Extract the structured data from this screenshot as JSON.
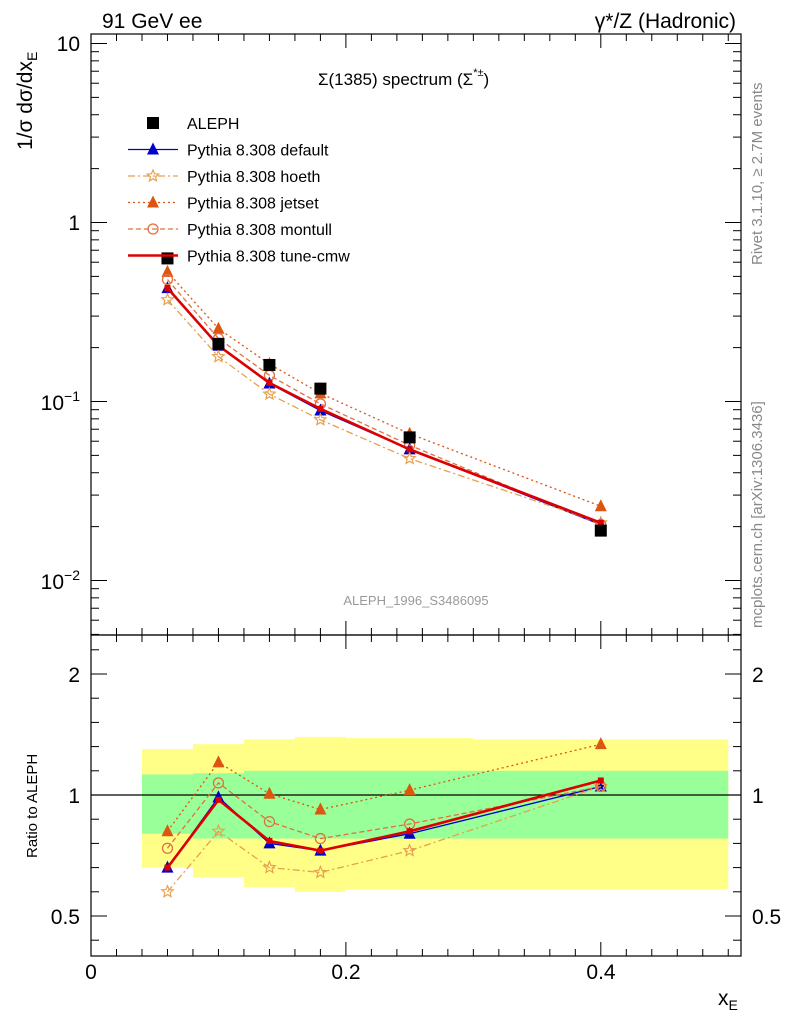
{
  "header": {
    "left": "91 GeV ee",
    "right": "γ*/Z (Hadronic)"
  },
  "side_text": {
    "rivet": "Rivet 3.1.10, ≥ 2.7M events",
    "mcplots": "mcplots.cern.ch [arXiv:1306.3436]"
  },
  "watermark": "ALEPH_1996_S3486095",
  "chart_data": {
    "type": "line",
    "title": "Σ(1385) spectrum (Σ*±)",
    "xlabel": "x_E",
    "ylabel": "1/σ dσ/dx_E",
    "ratio_ylabel": "Ratio to ALEPH",
    "xlim": [
      0,
      0.51
    ],
    "ylim": [
      0.005,
      11
    ],
    "yscale": "log",
    "ratio_ylim": [
      0.35,
      2.4
    ],
    "x": [
      0.06,
      0.1,
      0.14,
      0.18,
      0.25,
      0.4
    ],
    "x_ticks": [
      "0",
      "0.2",
      "0.4"
    ],
    "y_ticks": [
      "10",
      "1",
      "10−1",
      "10−2"
    ],
    "ratio_ticks": [
      "2",
      "1",
      "0.5"
    ],
    "legend_position": "top-left",
    "data": {
      "name": "ALEPH",
      "values": [
        0.63,
        0.21,
        0.16,
        0.118,
        0.063,
        0.019
      ],
      "band_edges": [
        0.04,
        0.08,
        0.12,
        0.16,
        0.2,
        0.3,
        0.5
      ],
      "band_green_lo": [
        0.84,
        0.82,
        0.82,
        0.82,
        0.82,
        0.82
      ],
      "band_green_hi": [
        1.17,
        1.18,
        1.2,
        1.2,
        1.2,
        1.2
      ],
      "band_yellow_lo": [
        0.7,
        0.66,
        0.62,
        0.6,
        0.61,
        0.61
      ],
      "band_yellow_hi": [
        1.38,
        1.42,
        1.46,
        1.48,
        1.47,
        1.46
      ]
    },
    "series": [
      {
        "name": "Pythia 8.308 default",
        "color": "#0000cc",
        "values": [
          0.43,
          0.205,
          0.126,
          0.089,
          0.054,
          0.0205
        ],
        "ratio": [
          0.7,
          0.99,
          0.8,
          0.77,
          0.84,
          1.07
        ]
      },
      {
        "name": "Pythia 8.308 hoeth",
        "color": "#e8a050",
        "values": [
          0.37,
          0.178,
          0.11,
          0.079,
          0.048,
          0.021
        ],
        "ratio": [
          0.6,
          0.85,
          0.7,
          0.68,
          0.77,
          1.07
        ]
      },
      {
        "name": "Pythia 8.308 jetset",
        "color": "#dd5511",
        "values": [
          0.53,
          0.255,
          0.162,
          0.111,
          0.066,
          0.026
        ],
        "ratio": [
          0.85,
          1.27,
          1.01,
          0.94,
          1.04,
          1.42
        ]
      },
      {
        "name": "Pythia 8.308 montull",
        "color": "#e07040",
        "values": [
          0.48,
          0.225,
          0.14,
          0.097,
          0.057,
          0.0205
        ],
        "ratio": [
          0.78,
          1.1,
          0.89,
          0.82,
          0.88,
          1.07
        ]
      },
      {
        "name": "Pythia 8.308 tune-cmw",
        "color": "#dd0000",
        "values": [
          0.43,
          0.205,
          0.127,
          0.091,
          0.054,
          0.021
        ],
        "ratio": [
          0.7,
          0.98,
          0.81,
          0.77,
          0.85,
          1.12
        ]
      }
    ]
  }
}
